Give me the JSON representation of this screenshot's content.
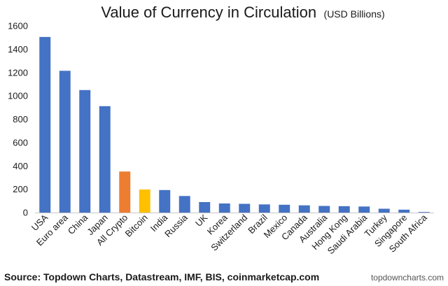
{
  "chart_data": {
    "type": "bar",
    "title": "Value of Currency in Circulation",
    "subtitle": "(USD Billions)",
    "categories": [
      "USA",
      "Euro area",
      "China",
      "Japan",
      "All Crypto",
      "Bitcoin",
      "India",
      "Russia",
      "UK",
      "Korea",
      "Switzerland",
      "Brazil",
      "Mexico",
      "Canada",
      "Australia",
      "Hong Kong",
      "Saudi Arabia",
      "Turkey",
      "Singapore",
      "South Africa"
    ],
    "values": [
      1505,
      1215,
      1050,
      912,
      352,
      198,
      193,
      142,
      90,
      78,
      75,
      70,
      67,
      62,
      57,
      55,
      52,
      33,
      25,
      5
    ],
    "colors": [
      "#4472c4",
      "#4472c4",
      "#4472c4",
      "#4472c4",
      "#ed7d31",
      "#ffc000",
      "#4472c4",
      "#4472c4",
      "#4472c4",
      "#4472c4",
      "#4472c4",
      "#4472c4",
      "#4472c4",
      "#4472c4",
      "#4472c4",
      "#4472c4",
      "#4472c4",
      "#4472c4",
      "#4472c4",
      "#4472c4"
    ],
    "ylim": [
      0,
      1600
    ],
    "yticks": [
      0,
      200,
      400,
      600,
      800,
      1000,
      1200,
      1400,
      1600
    ],
    "xlabel": "",
    "ylabel": "",
    "grid": false,
    "legend": "none"
  },
  "footer": {
    "source": "Source: Topdown Charts, Datastream, IMF, BIS, coinmarketcap.com",
    "brand": "topdowncharts.com"
  }
}
